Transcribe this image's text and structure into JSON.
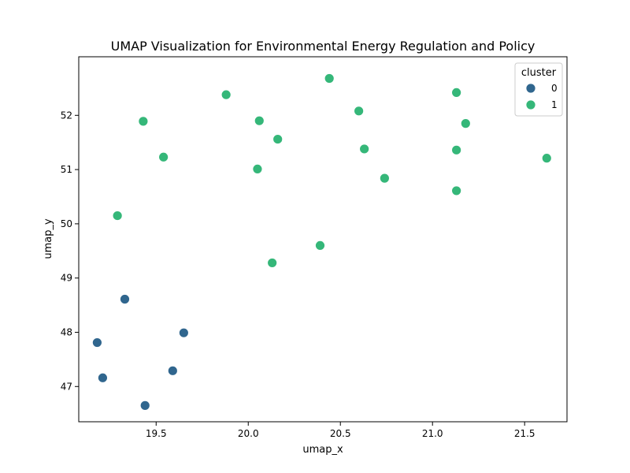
{
  "chart_data": {
    "type": "scatter",
    "title": "UMAP Visualization for Environmental Energy Regulation and Policy",
    "xlabel": "umap_x",
    "ylabel": "umap_y",
    "xlim": [
      19.08,
      21.73
    ],
    "ylim": [
      46.35,
      53.08
    ],
    "xticks": [
      19.5,
      20.0,
      20.5,
      21.0,
      21.5
    ],
    "xtick_labels": [
      "19.5",
      "20.0",
      "20.5",
      "21.0",
      "21.5"
    ],
    "yticks": [
      47,
      48,
      49,
      50,
      51,
      52
    ],
    "ytick_labels": [
      "47",
      "48",
      "49",
      "50",
      "51",
      "52"
    ],
    "grid": false,
    "legend": {
      "title": "cluster",
      "placement": "top-right"
    },
    "series": [
      {
        "name": "0",
        "color": "#30668e",
        "points": [
          {
            "x": 19.33,
            "y": 48.61
          },
          {
            "x": 19.18,
            "y": 47.81
          },
          {
            "x": 19.21,
            "y": 47.16
          },
          {
            "x": 19.65,
            "y": 47.99
          },
          {
            "x": 19.59,
            "y": 47.29
          },
          {
            "x": 19.44,
            "y": 46.65
          }
        ]
      },
      {
        "name": "1",
        "color": "#35b779",
        "points": [
          {
            "x": 20.44,
            "y": 52.68
          },
          {
            "x": 19.88,
            "y": 52.38
          },
          {
            "x": 21.13,
            "y": 52.42
          },
          {
            "x": 20.6,
            "y": 52.08
          },
          {
            "x": 19.43,
            "y": 51.89
          },
          {
            "x": 20.06,
            "y": 51.9
          },
          {
            "x": 21.18,
            "y": 51.85
          },
          {
            "x": 20.16,
            "y": 51.56
          },
          {
            "x": 20.63,
            "y": 51.38
          },
          {
            "x": 21.13,
            "y": 51.36
          },
          {
            "x": 19.54,
            "y": 51.23
          },
          {
            "x": 21.62,
            "y": 51.21
          },
          {
            "x": 20.05,
            "y": 51.01
          },
          {
            "x": 20.74,
            "y": 50.84
          },
          {
            "x": 21.13,
            "y": 50.61
          },
          {
            "x": 19.29,
            "y": 50.15
          },
          {
            "x": 20.39,
            "y": 49.6
          },
          {
            "x": 20.13,
            "y": 49.28
          }
        ]
      }
    ]
  }
}
